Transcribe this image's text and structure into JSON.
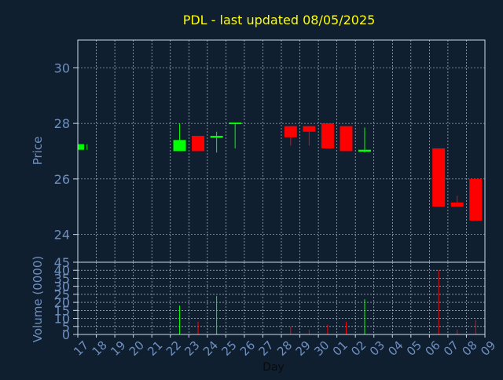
{
  "chart_data": {
    "type": "candlestick",
    "title": "PDL - last updated 08/05/2025",
    "price_panel": {
      "ylabel": "Price",
      "ylim": [
        23.0,
        31.0
      ],
      "yticks": [
        24,
        26,
        28,
        30
      ],
      "grid": true
    },
    "volume_panel": {
      "ylabel": "Volume (0000)",
      "ylim": [
        0,
        45
      ],
      "yticks": [
        0,
        5,
        10,
        15,
        20,
        25,
        30,
        35,
        40,
        45
      ],
      "grid": true
    },
    "xlabel": "Day",
    "x_tick_labels": [
      "17",
      "18",
      "19",
      "20",
      "21",
      "22",
      "23",
      "24",
      "25",
      "26",
      "27",
      "28",
      "29",
      "30",
      "01",
      "02",
      "03",
      "04",
      "05",
      "06",
      "07",
      "08",
      "09"
    ],
    "candles": [
      {
        "day": "17",
        "open": 27.05,
        "high": 27.25,
        "low": 27.05,
        "close": 27.25,
        "volume": 0,
        "direction": "up"
      },
      {
        "day": "22",
        "open": 27.0,
        "high": 28.0,
        "low": 27.0,
        "close": 27.4,
        "volume": 18,
        "direction": "up"
      },
      {
        "day": "23",
        "open": 27.55,
        "high": 27.55,
        "low": 27.0,
        "close": 27.0,
        "volume": 8,
        "direction": "down"
      },
      {
        "day": "24",
        "open": 27.48,
        "high": 27.7,
        "low": 26.95,
        "close": 27.55,
        "volume": 24,
        "direction": "up"
      },
      {
        "day": "25",
        "open": 27.95,
        "high": 28.0,
        "low": 27.1,
        "close": 28.0,
        "volume": 0,
        "direction": "up"
      },
      {
        "day": "28",
        "open": 27.9,
        "high": 27.9,
        "low": 27.2,
        "close": 27.5,
        "volume": 5,
        "direction": "down"
      },
      {
        "day": "29",
        "open": 27.9,
        "high": 27.9,
        "low": 27.2,
        "close": 27.7,
        "volume": 3,
        "direction": "down"
      },
      {
        "day": "30",
        "open": 28.0,
        "high": 28.0,
        "low": 27.1,
        "close": 27.1,
        "volume": 6,
        "direction": "down"
      },
      {
        "day": "01",
        "open": 27.9,
        "high": 27.9,
        "low": 27.0,
        "close": 27.0,
        "volume": 8,
        "direction": "down"
      },
      {
        "day": "02",
        "open": 26.98,
        "high": 27.85,
        "low": 26.95,
        "close": 27.05,
        "volume": 22,
        "direction": "up"
      },
      {
        "day": "06",
        "open": 27.1,
        "high": 27.1,
        "low": 25.0,
        "close": 25.0,
        "volume": 40,
        "direction": "down"
      },
      {
        "day": "07",
        "open": 25.15,
        "high": 25.4,
        "low": 25.0,
        "close": 25.0,
        "volume": 3,
        "direction": "down"
      },
      {
        "day": "08",
        "open": 26.0,
        "high": 26.0,
        "low": 24.5,
        "close": 24.5,
        "volume": 9,
        "direction": "down"
      }
    ]
  },
  "colors": {
    "background": "#0f1f30",
    "title": "#ffff00",
    "axis_text": "#6f8fbf",
    "up": "#00ff00",
    "down": "#ff0000",
    "frame": "#cfd8e6",
    "grid": "#cfd8e6"
  }
}
